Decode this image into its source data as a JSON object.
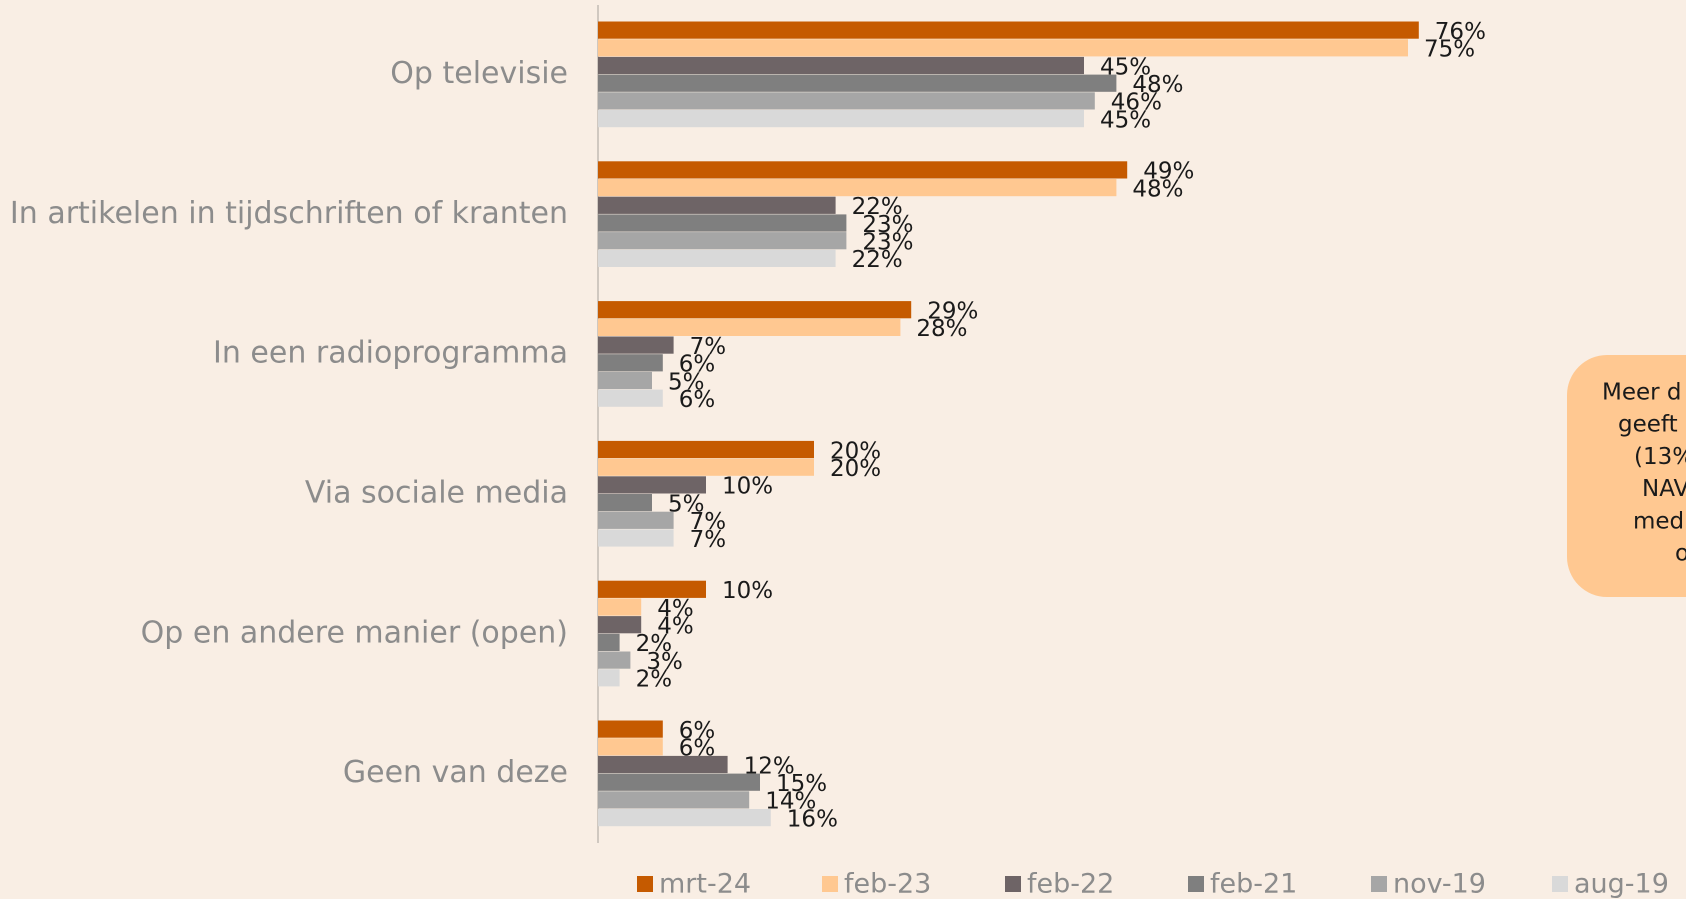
{
  "chart_data": {
    "type": "hbar",
    "categories": [
      "Op televisie",
      "In artikelen in tijdschriften of kranten",
      "In een radioprogramma",
      "Via sociale media",
      "Op en andere manier (open)",
      "Geen van deze"
    ],
    "series": [
      {
        "name": "mrt-24",
        "color": "#c55a00",
        "values": [
          76,
          49,
          29,
          20,
          10,
          6
        ]
      },
      {
        "name": "feb-23",
        "color": "#ffc891",
        "values": [
          75,
          48,
          28,
          20,
          4,
          6
        ]
      },
      {
        "name": "feb-22",
        "color": "#6e6466",
        "values": [
          45,
          22,
          7,
          10,
          4,
          12
        ]
      },
      {
        "name": "feb-21",
        "color": "#7f7f7f",
        "values": [
          48,
          23,
          6,
          5,
          2,
          15
        ]
      },
      {
        "name": "nov-19",
        "color": "#a6a6a6",
        "values": [
          46,
          23,
          5,
          7,
          3,
          14
        ]
      },
      {
        "name": "aug-19",
        "color": "#d9d9d9",
        "values": [
          45,
          22,
          6,
          7,
          2,
          16
        ]
      }
    ],
    "value_labels": [
      [
        "76%",
        "49%",
        "29%",
        "20%",
        "10%",
        "6%"
      ],
      [
        "75%",
        "48%",
        "28%",
        "20%",
        "4%",
        "6%"
      ],
      [
        "45%",
        "22%",
        "7%",
        "10%",
        "4%",
        "12%"
      ],
      [
        "48%",
        "23%",
        "6%",
        "5%",
        "2%",
        "15%"
      ],
      [
        "46%",
        "23%",
        "5%",
        "7%",
        "3%",
        "14%"
      ],
      [
        "45%",
        "22%",
        "6%",
        "7%",
        "2%",
        "16%"
      ]
    ],
    "xlim": [
      0,
      100
    ],
    "legend": "bottom",
    "annotation": {
      "lines": [
        "Meer d",
        "geeft",
        "(13%",
        "NAV",
        "media",
        "o"
      ]
    }
  }
}
